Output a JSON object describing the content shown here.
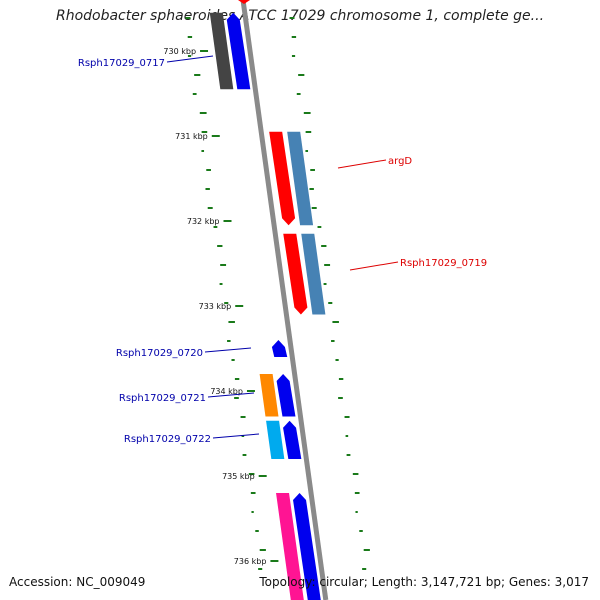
{
  "title": "Rhodobacter sphaeroides ATCC 17029 chromosome 1, complete ge...",
  "footer": {
    "accession": "Accession: NC_009049",
    "stats": "Topology: circular; Length: 3,147,721 bp; Genes: 3,017"
  },
  "colors": {
    "backbone": "#8a8a8a",
    "gc_dots": "#1a7a1a",
    "forward_label": "#0000aa",
    "reverse_label": "#dd0000"
  },
  "ticks": [
    "730 kbp",
    "731 kbp",
    "732 kbp",
    "733 kbp",
    "734 kbp",
    "735 kbp",
    "736 kbp"
  ],
  "genes": [
    {
      "name": "Rsph17029_0717",
      "id": "0717",
      "strand": "forward",
      "track_color": "#444444",
      "cds_color": "#0000ee",
      "start_kbp": 729.55,
      "end_kbp": 730.45
    },
    {
      "name": "argD",
      "id": "argD",
      "strand": "reverse",
      "track_color": "#ff0000",
      "cds_color": "#4682b4",
      "start_kbp": 730.95,
      "end_kbp": 732.05
    },
    {
      "name": "Rsph17029_0719",
      "id": "0719",
      "strand": "reverse",
      "track_color": "#ff0000",
      "cds_color": "#4682b4",
      "start_kbp": 732.15,
      "end_kbp": 733.1
    },
    {
      "name": "Rsph17029_0720",
      "id": "0720",
      "strand": "forward",
      "cds_color": "#0000ee",
      "start_kbp": 733.4,
      "end_kbp": 733.6
    },
    {
      "name": "Rsph17029_0721",
      "id": "0721",
      "strand": "forward",
      "track_color": "#ff8800",
      "cds_color": "#0000ee",
      "start_kbp": 733.8,
      "end_kbp": 734.3
    },
    {
      "name": "Rsph17029_0722",
      "id": "0722",
      "strand": "forward",
      "track_color": "#00aaee",
      "cds_color": "#0000ee",
      "start_kbp": 734.35,
      "end_kbp": 734.8
    },
    {
      "name": "",
      "id": "next",
      "strand": "forward",
      "track_color": "#ff1493",
      "cds_color": "#0000ee",
      "start_kbp": 735.2,
      "end_kbp": 736.5
    }
  ],
  "gc_skew": [
    1.0,
    0.8,
    -0.4,
    1.4,
    -0.6,
    1.6,
    1.2,
    -0.2,
    0.9,
    -0.8,
    -1.0,
    0.6,
    1.1,
    1.3,
    -0.3,
    0.7,
    1.5,
    -0.5,
    0.4,
    0.8,
    -0.9,
    1.0,
    0.2,
    -0.6,
    1.2,
    0.9,
    -0.1,
    0.5,
    1.4,
    -0.7,
    1.1,
    0.3,
    -0.4,
    0.8,
    1.6,
    0.2,
    -0.8,
    1.0,
    0.6,
    -0.3,
    0.9,
    1.2,
    -0.5,
    0.4,
    1.1,
    0.7,
    -0.2,
    1.3,
    0.5,
    -0.6
  ]
}
